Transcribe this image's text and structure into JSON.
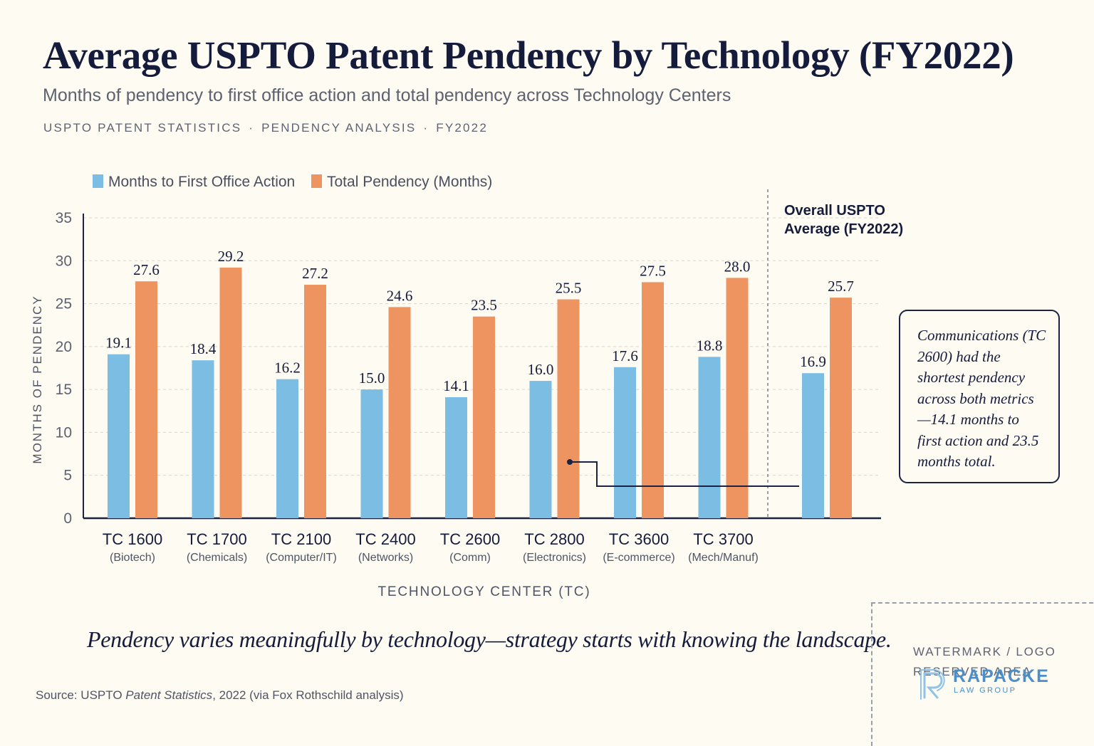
{
  "header": {
    "title": "Average USPTO Patent Pendency by Technology  (FY2022)",
    "subtitle": "Months of pendency to first office action and total pendency across Technology Centers",
    "kicker": [
      "USPTO PATENT STATISTICS",
      "PENDENCY ANALYSIS",
      "FY2022"
    ],
    "kicker_separator": "·"
  },
  "chart_data": {
    "type": "bar",
    "categories": [
      "TC 1600",
      "TC 1700",
      "TC 2100",
      "TC 2400",
      "TC 2600",
      "TC 2800",
      "TC 3600",
      "TC 3700"
    ],
    "category_sublabels": [
      "(Biotech)",
      "(Chemicals)",
      "(Computer/IT)",
      "(Networks)",
      "(Comm)",
      "(Electronics)",
      "(E-commerce)",
      "(Mech/Manuf)"
    ],
    "series": [
      {
        "name": "Months to First Office Action",
        "color": "#7bbde3",
        "values": [
          19.1,
          18.4,
          16.2,
          15.0,
          14.1,
          16.0,
          17.6,
          18.8
        ]
      },
      {
        "name": "Total Pendency (Months)",
        "color": "#ee9460",
        "values": [
          27.6,
          29.2,
          27.2,
          24.6,
          23.5,
          25.5,
          27.5,
          28.0
        ]
      }
    ],
    "overall": {
      "label_line1": "Overall USPTO",
      "label_line2": "Average (FY2022)",
      "values": [
        16.9,
        25.7
      ]
    },
    "xlabel": "TECHNOLOGY CENTER  (TC)",
    "ylabel": "MONTHS OF PENDENCY",
    "ylim": [
      0,
      35
    ],
    "yticks": [
      0,
      5,
      10,
      15,
      20,
      25,
      30,
      35
    ],
    "grid": true,
    "legend_position": "top-left"
  },
  "callout": {
    "text": "Communications (TC 2600) had the shortest pendency across both metrics—14.1 months to first action and 23.5 months total."
  },
  "tagline": "Pendency varies meaningfully by technology—strategy starts with knowing the landscape.",
  "source": {
    "prefix": "Source: USPTO ",
    "italic": "Patent Statistics",
    "suffix": ", 2022 (via Fox Rothschild analysis)"
  },
  "watermark": {
    "line1": "WATERMARK / LOGO",
    "line2": "RESERVED AREA",
    "logo_name": "RAPACKE",
    "logo_sub": "LAW GROUP",
    "logo_color": "#4a8fcb"
  }
}
